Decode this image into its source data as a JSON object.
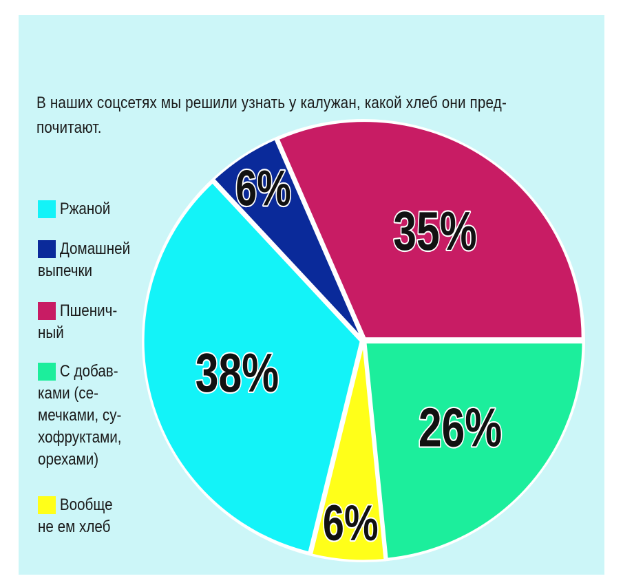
{
  "intro_text": "В наших соцсетях мы решили узнать у калужан, какой хлеб они пред-\nпочитают.",
  "chart_data": {
    "type": "pie",
    "unit": "%",
    "slices": [
      {
        "label": "Ржаной",
        "legend": "Ржаной",
        "value": 38,
        "display": "38%",
        "color": "#13f3f8"
      },
      {
        "label": "Домашней выпечки",
        "legend": "Домашней\nвыпечки",
        "value": 6,
        "display": "6%",
        "color": "#0a2a9a"
      },
      {
        "label": "Пшеничный",
        "legend": "Пшенич-\nный",
        "value": 35,
        "display": "35%",
        "color": "#c81c64"
      },
      {
        "label": "С добавками (семечками, сухофруктами, орехами)",
        "legend": "С добав-\nками (се-\nмечками, су-\nхофруктами,\nорехами)",
        "value": 26,
        "display": "26%",
        "color": "#1cee9c"
      },
      {
        "label": "Вообще не ем хлеб",
        "legend": "Вообще\nне ем хлеб",
        "value": 6,
        "display": "6%",
        "color": "#ffff19"
      }
    ],
    "legend_position": "left"
  }
}
